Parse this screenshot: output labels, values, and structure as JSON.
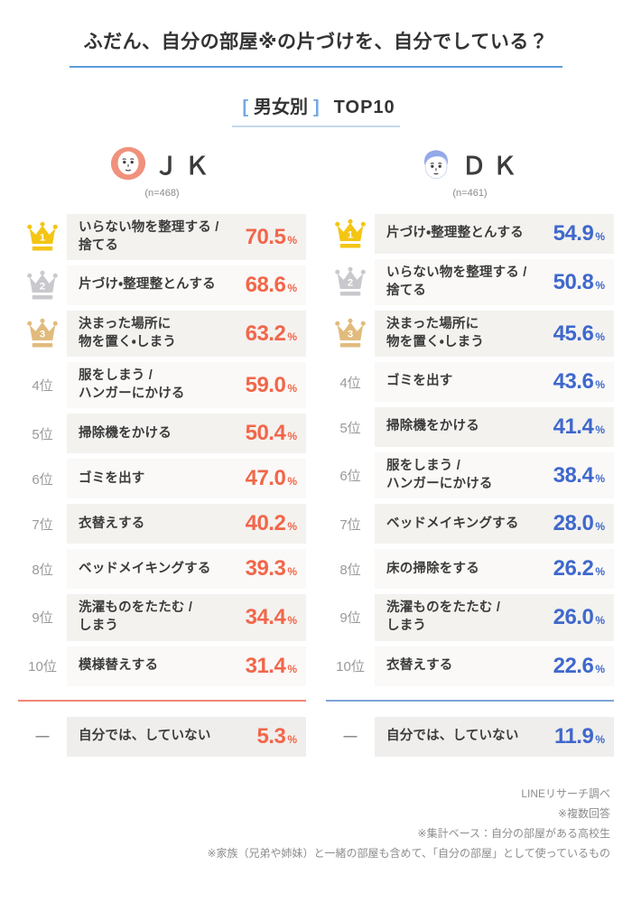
{
  "title": "ふだん、自分の部屋※の片づけを、自分でしている？",
  "title_rule_color": "#5b9ed9",
  "subtitle": {
    "bracket_left": "[",
    "label": "男女別",
    "bracket_right": "]",
    "suffix": "TOP10",
    "bracket_color": "#74a9e2",
    "rule_color": "#c2d8ef"
  },
  "rank_styles": {
    "gold": "#f4c513",
    "silver": "#c9c9cd",
    "bronze": "#e1bb7e"
  },
  "columns": {
    "jk": {
      "name": "ＪＫ",
      "sample": "(n=468)",
      "accent": "#f2664a",
      "divider_color": "#f08676",
      "hair_color": "#f0917d",
      "unit": "%",
      "rows": [
        {
          "crown": "gold",
          "num": "1",
          "label": "いらない物を整理する /\n捨てる",
          "value": "70.5"
        },
        {
          "crown": "silver",
          "num": "2",
          "label": "片づけ・整理整とんする",
          "value": "68.6"
        },
        {
          "crown": "bronze",
          "num": "3",
          "label": "決まった場所に\n物を置く・しまう",
          "value": "63.2"
        },
        {
          "rank": "4位",
          "label": "服をしまう /\nハンガーにかける",
          "value": "59.0"
        },
        {
          "rank": "5位",
          "label": "掃除機をかける",
          "value": "50.4"
        },
        {
          "rank": "6位",
          "label": "ゴミを出す",
          "value": "47.0"
        },
        {
          "rank": "7位",
          "label": "衣替えする",
          "value": "40.2"
        },
        {
          "rank": "8位",
          "label": "ベッドメイキングする",
          "value": "39.3"
        },
        {
          "rank": "9位",
          "label": "洗濯ものをたたむ /\nしまう",
          "value": "34.4"
        },
        {
          "rank": "10位",
          "label": "模様替えする",
          "value": "31.4"
        }
      ],
      "extra_row": {
        "rank": "—",
        "label": "自分では、していない",
        "value": "5.3"
      }
    },
    "dk": {
      "name": "ＤＫ",
      "sample": "(n=461)",
      "accent": "#3f68cc",
      "divider_color": "#7fa3d9",
      "hair_color": "#93a9e9",
      "unit": "%",
      "rows": [
        {
          "crown": "gold",
          "num": "1",
          "label": "片づけ・整理整とんする",
          "value": "54.9"
        },
        {
          "crown": "silver",
          "num": "2",
          "label": "いらない物を整理する /\n捨てる",
          "value": "50.8"
        },
        {
          "crown": "bronze",
          "num": "3",
          "label": "決まった場所に\n物を置く・しまう",
          "value": "45.6"
        },
        {
          "rank": "4位",
          "label": "ゴミを出す",
          "value": "43.6"
        },
        {
          "rank": "5位",
          "label": "掃除機をかける",
          "value": "41.4"
        },
        {
          "rank": "6位",
          "label": "服をしまう /\nハンガーにかける",
          "value": "38.4"
        },
        {
          "rank": "7位",
          "label": "ベッドメイキングする",
          "value": "28.0"
        },
        {
          "rank": "8位",
          "label": "床の掃除をする",
          "value": "26.2"
        },
        {
          "rank": "9位",
          "label": "洗濯ものをたたむ /\nしまう",
          "value": "26.0"
        },
        {
          "rank": "10位",
          "label": "衣替えする",
          "value": "22.6"
        }
      ],
      "extra_row": {
        "rank": "—",
        "label": "自分では、していない",
        "value": "11.9"
      }
    }
  },
  "footer": {
    "lines": [
      "LINEリサーチ調べ",
      "※複数回答",
      "※集計ベース：自分の部屋がある高校生",
      "※家族（兄弟や姉妹）と一緒の部屋も含めて、「自分の部屋」として使っているもの"
    ]
  },
  "chart_data": {
    "type": "table",
    "title": "ふだん、自分の部屋※の片づけを、自分でしている？",
    "subtitle": "[男女別] TOP10",
    "unit": "%",
    "series": [
      {
        "name": "JK",
        "n": 468,
        "categories": [
          "いらない物を整理する / 捨てる",
          "片づけ・整理整とんする",
          "決まった場所に物を置く・しまう",
          "服をしまう / ハンガーにかける",
          "掃除機をかける",
          "ゴミを出す",
          "衣替えする",
          "ベッドメイキングする",
          "洗濯ものをたたむ / しまう",
          "模様替えする",
          "自分では、していない"
        ],
        "values": [
          70.5,
          68.6,
          63.2,
          59.0,
          50.4,
          47.0,
          40.2,
          39.3,
          34.4,
          31.4,
          5.3
        ]
      },
      {
        "name": "DK",
        "n": 461,
        "categories": [
          "片づけ・整理整とんする",
          "いらない物を整理する / 捨てる",
          "決まった場所に物を置く・しまう",
          "ゴミを出す",
          "掃除機をかける",
          "服をしまう / ハンガーにかける",
          "ベッドメイキングする",
          "床の掃除をする",
          "洗濯ものをたたむ / しまう",
          "衣替えする",
          "自分では、していない"
        ],
        "values": [
          54.9,
          50.8,
          45.6,
          43.6,
          41.4,
          38.4,
          28.0,
          26.2,
          26.0,
          22.6,
          11.9
        ]
      }
    ]
  }
}
